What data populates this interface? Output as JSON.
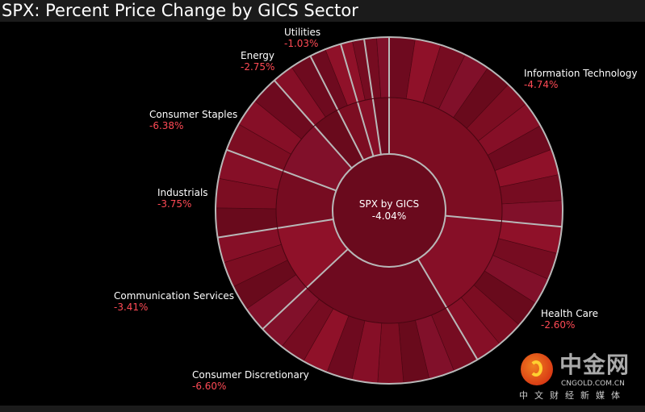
{
  "title": "SPX: Percent Price Change by GICS Sector",
  "chart_data": {
    "type": "sunburst",
    "title": "SPX: Percent Price Change by GICS Sector",
    "center": {
      "label": "SPX by GICS",
      "value": "-4.04%"
    },
    "sectors": [
      {
        "name": "Information Technology",
        "value": "-4.74%",
        "weight_pct": 26.5
      },
      {
        "name": "Health Care",
        "value": "-2.60%",
        "weight_pct": 15
      },
      {
        "name": "Consumer Discretionary",
        "value": "-6.60%",
        "weight_pct": 21.5
      },
      {
        "name": "Communication Services",
        "value": "-3.41%",
        "weight_pct": 9.5
      },
      {
        "name": "Industrials",
        "value": "-3.75%",
        "weight_pct": 8.2
      },
      {
        "name": "Consumer Staples",
        "value": "-6.38%",
        "weight_pct": 7.8
      },
      {
        "name": "Energy",
        "value": "-2.75%",
        "weight_pct": 4
      },
      {
        "name": "",
        "value": "",
        "weight_pct": 3
      },
      {
        "name": "",
        "value": "",
        "weight_pct": 2.2
      },
      {
        "name": "Utilities",
        "value": "-1.03%",
        "weight_pct": 2.3
      }
    ],
    "colors": {
      "background": "#000000",
      "negative_text": "#ff4a55",
      "divider": "#b8b8b8"
    }
  },
  "watermark": {
    "cn": "中金网",
    "en": "CNGOLD.COM.CN",
    "sub": "中文财经新媒体"
  }
}
